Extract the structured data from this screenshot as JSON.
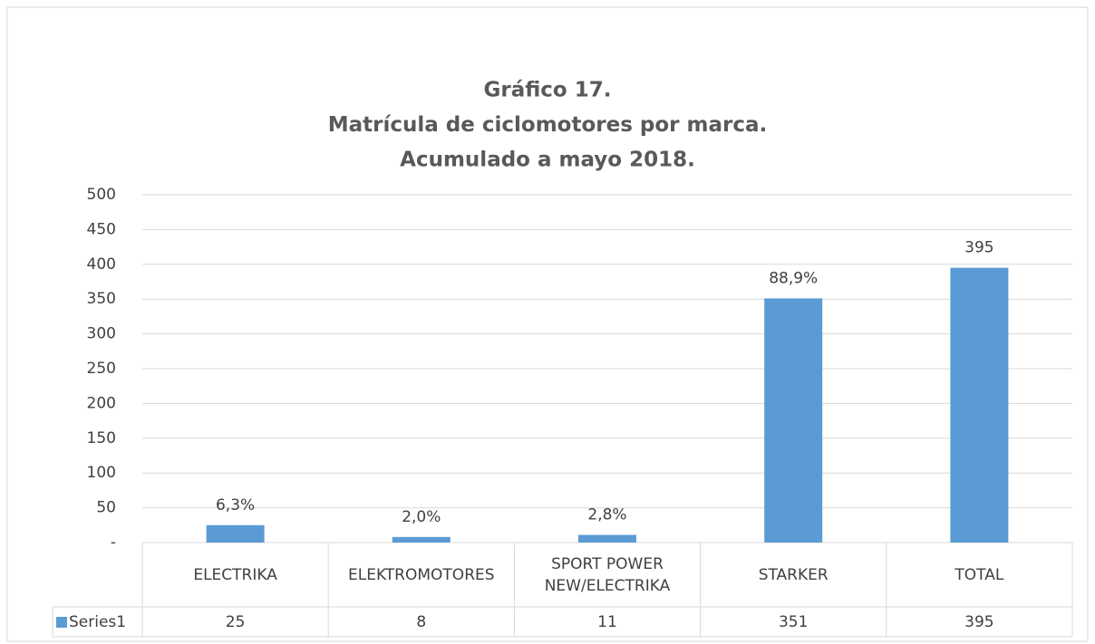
{
  "chart_data": {
    "type": "bar",
    "title": [
      "Gráfico 17.",
      "Matrícula de ciclomotores por marca.",
      "Acumulado a mayo 2018."
    ],
    "categories": [
      "ELECTRIKA",
      "ELEKTROMOTORES",
      "SPORT POWER NEW/ELECTRIKA",
      "STARKER",
      "TOTAL"
    ],
    "series": [
      {
        "name": "Series1",
        "color": "#5b9bd5",
        "values": [
          25,
          8,
          11,
          351,
          395
        ]
      }
    ],
    "data_labels": [
      {
        "value": 6.3,
        "label": "6,3%"
      },
      {
        "value": 2.0,
        "label": "2,0%"
      },
      {
        "value": 2.8,
        "label": "2,8%"
      },
      {
        "value": 88.9,
        "label": "88,9%"
      },
      {
        "value": 395,
        "label": "395"
      }
    ],
    "ylim": [
      0,
      500
    ],
    "yticks": [
      {
        "value": 0,
        "label": "-"
      },
      50,
      100,
      150,
      200,
      250,
      300,
      350,
      400,
      450,
      500
    ],
    "grid": true,
    "legend": "data-table"
  }
}
